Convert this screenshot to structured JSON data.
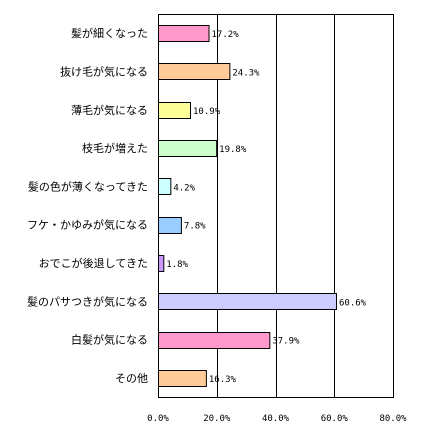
{
  "chart_data": {
    "type": "bar",
    "orientation": "horizontal",
    "categories": [
      "髪が細くなった",
      "抜け毛が気になる",
      "薄毛が気になる",
      "枝毛が増えた",
      "髪の色が薄くなってきた",
      "フケ・かゆみが気になる",
      "おでこが後退してきた",
      "髪のパサつきが気になる",
      "白髪が気になる",
      "その他"
    ],
    "values": [
      17.2,
      24.3,
      10.9,
      19.8,
      4.2,
      7.8,
      1.8,
      60.6,
      37.9,
      16.3
    ],
    "value_labels": [
      "17.2%",
      "24.3%",
      "10.9%",
      "19.8%",
      "4.2%",
      "7.8%",
      "1.8%",
      "60.6%",
      "37.9%",
      "16.3%"
    ],
    "colors": [
      "#ff99cc",
      "#ffcc99",
      "#ffff99",
      "#ccffcc",
      "#ccffff",
      "#99ccff",
      "#cc99ff",
      "#ccccff",
      "#ff99cc",
      "#ffcc99"
    ],
    "xlim": [
      0,
      80
    ],
    "xticks": [
      0,
      20,
      40,
      60,
      80
    ],
    "xtick_labels": [
      "0.0%",
      "20.0%",
      "40.0%",
      "60.0%",
      "80.0%"
    ],
    "grid": true,
    "title": "",
    "xlabel": "",
    "ylabel": ""
  }
}
